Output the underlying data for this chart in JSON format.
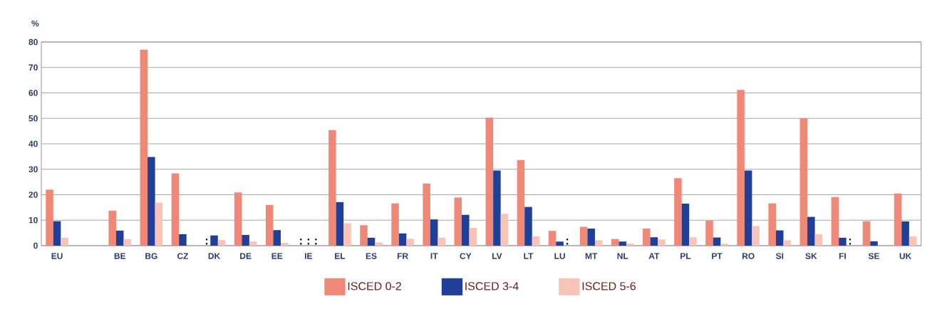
{
  "chart_data": {
    "type": "bar",
    "ylabel": "%",
    "categories": [
      "EU",
      null,
      "BE",
      "BG",
      "CZ",
      "DK",
      "DE",
      "EE",
      "IE",
      "EL",
      "ES",
      "FR",
      "IT",
      "CY",
      "LV",
      "LT",
      "LU",
      "MT",
      "NL",
      "AT",
      "PL",
      "PT",
      "RO",
      "SI",
      "SK",
      "FI",
      "SE",
      "UK"
    ],
    "series": [
      {
        "name": "ISCED 0-2",
        "color": "#f08878",
        "values": [
          22.0,
          null,
          13.7,
          77.0,
          28.4,
          null,
          20.9,
          16.0,
          null,
          45.4,
          8.0,
          16.6,
          24.4,
          18.9,
          50.3,
          33.6,
          5.8,
          7.4,
          2.6,
          6.7,
          26.5,
          9.8,
          61.2,
          16.6,
          50.1,
          19.1,
          9.6,
          20.5
        ]
      },
      {
        "name": "ISCED 3-4",
        "color": "#1f3f99",
        "values": [
          9.6,
          null,
          5.9,
          34.8,
          4.5,
          4.0,
          4.2,
          6.1,
          null,
          17.1,
          3.1,
          4.8,
          10.3,
          12.1,
          29.5,
          15.2,
          1.6,
          6.7,
          1.6,
          3.3,
          16.5,
          3.2,
          29.5,
          6.0,
          11.3,
          3.1,
          1.7,
          9.5
        ]
      },
      {
        "name": "ISCED 5-6",
        "color": "#f9c4b8",
        "values": [
          3.1,
          null,
          2.6,
          16.9,
          0,
          2.2,
          1.6,
          1.1,
          null,
          8.8,
          1.2,
          2.7,
          3.1,
          7.0,
          12.5,
          3.7,
          null,
          2.1,
          0.8,
          2.4,
          3.3,
          0.8,
          7.7,
          2.1,
          4.5,
          null,
          null,
          3.6
        ]
      }
    ],
    "annotations": [
      ":",
      ":",
      ":",
      ":",
      ":",
      ":"
    ],
    "ylim": [
      0,
      80
    ],
    "yticks": [
      0,
      10,
      20,
      30,
      40,
      50,
      60,
      70,
      80
    ],
    "grid": "y",
    "legend": "bottom"
  }
}
